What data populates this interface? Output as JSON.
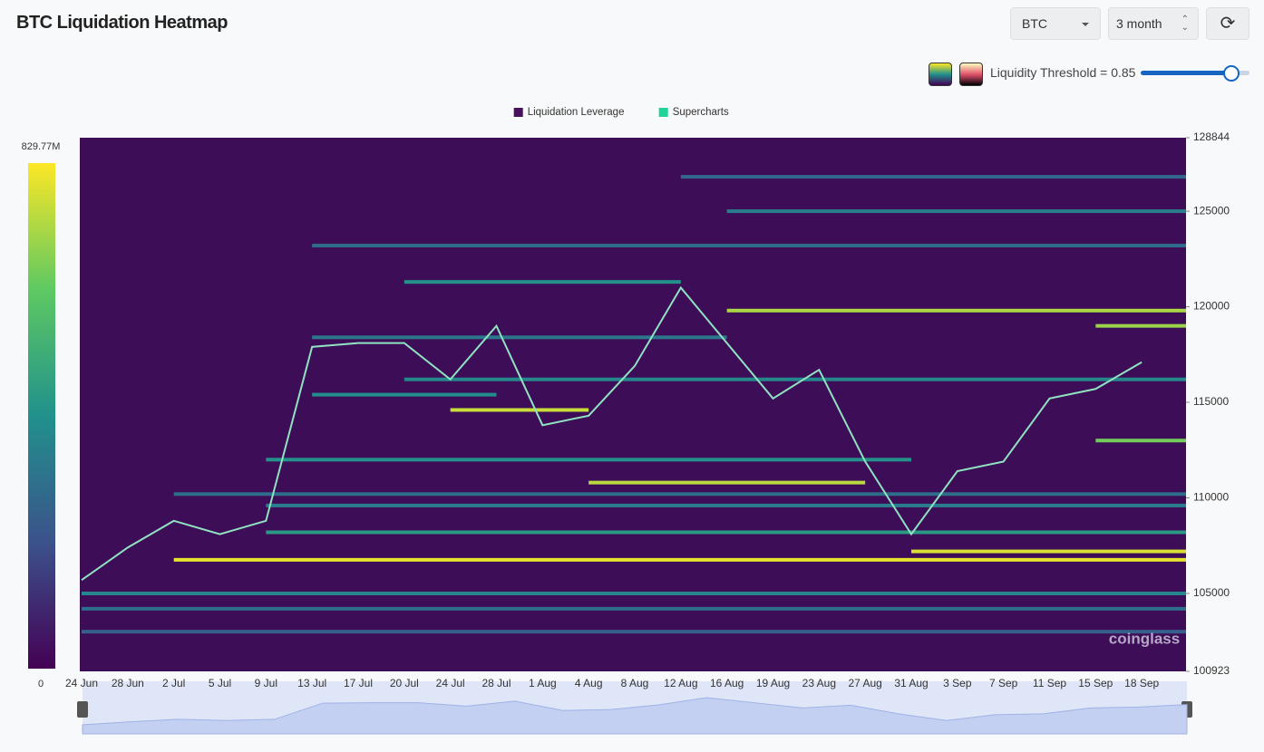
{
  "header": {
    "title": "BTC Liquidation Heatmap",
    "symbol": "BTC",
    "range": "3 month",
    "threshold": "Liquidity Threshold = 0.85"
  },
  "chart_data": {
    "type": "heatmap",
    "legend": [
      {
        "name": "Liquidation Leverage",
        "color": "#4a1060"
      },
      {
        "name": "Supercharts",
        "color": "#1ed49b"
      }
    ],
    "colorbar": [
      {
        "value": 829770000,
        "label": "829.77M"
      },
      0
    ],
    "categories": [
      "24 Jun",
      "28 Jun",
      "2 Jul",
      "5 Jul",
      "9 Jul",
      "13 Jul",
      "17 Jul",
      "20 Jul",
      "24 Jul",
      "28 Jul",
      "1 Aug",
      "4 Aug",
      "8 Aug",
      "12 Aug",
      "16 Aug",
      "19 Aug",
      "23 Aug",
      "27 Aug",
      "31 Aug",
      "3 Sep",
      "7 Sep",
      "11 Sep",
      "15 Sep",
      "18 Sep"
    ],
    "ylim": [
      100923,
      128844
    ],
    "yticks": [
      100923,
      105000,
      110000,
      115000,
      120000,
      125000,
      128844
    ],
    "price": {
      "color": "#8fe3c0",
      "values": [
        105700,
        107400,
        108800,
        108100,
        108800,
        117900,
        118100,
        118100,
        116200,
        119000,
        113800,
        114300,
        116900,
        121000,
        118100,
        115200,
        116700,
        111900,
        108100,
        111400,
        111900,
        115200,
        115700,
        117100
      ]
    },
    "levels": [
      {
        "price": 103000,
        "value": 250000000,
        "from": "24 Jun",
        "to": "18 Sep"
      },
      {
        "price": 104200,
        "value": 300000000,
        "from": "24 Jun",
        "to": "18 Sep"
      },
      {
        "price": 105000,
        "value": 380000000,
        "from": "24 Jun",
        "to": "18 Sep"
      },
      {
        "price": 108200,
        "value": 450000000,
        "from": "9 Jul",
        "to": "18 Sep"
      },
      {
        "price": 109600,
        "value": 350000000,
        "from": "9 Jul",
        "to": "18 Sep"
      },
      {
        "price": 110200,
        "value": 300000000,
        "from": "2 Jul",
        "to": "18 Sep"
      },
      {
        "price": 112000,
        "value": 420000000,
        "from": "9 Jul",
        "to": "27 Aug"
      },
      {
        "price": 115400,
        "value": 400000000,
        "from": "13 Jul",
        "to": "24 Jul"
      },
      {
        "price": 116200,
        "value": 380000000,
        "from": "20 Jul",
        "to": "18 Sep"
      },
      {
        "price": 118400,
        "value": 330000000,
        "from": "13 Jul",
        "to": "12 Aug"
      },
      {
        "price": 121300,
        "value": 420000000,
        "from": "20 Jul",
        "to": "8 Aug"
      },
      {
        "price": 123200,
        "value": 300000000,
        "from": "13 Jul",
        "to": "18 Sep"
      },
      {
        "price": 125000,
        "value": 350000000,
        "from": "16 Aug",
        "to": "18 Sep"
      },
      {
        "price": 126800,
        "value": 280000000,
        "from": "12 Aug",
        "to": "18 Sep"
      },
      {
        "price": 106760,
        "value": 800000000,
        "from": "2 Jul",
        "to": "18 Sep"
      },
      {
        "price": 107200,
        "value": 780000000,
        "from": "31 Aug",
        "to": "18 Sep"
      },
      {
        "price": 114600,
        "value": 760000000,
        "from": "24 Jul",
        "to": "1 Aug"
      },
      {
        "price": 110800,
        "value": 740000000,
        "from": "4 Aug",
        "to": "23 Aug"
      },
      {
        "price": 119800,
        "value": 720000000,
        "from": "16 Aug",
        "to": "18 Sep"
      },
      {
        "price": 119000,
        "value": 700000000,
        "from": "15 Sep",
        "to": "18 Sep"
      },
      {
        "price": 113000,
        "value": 650000000,
        "from": "15 Sep",
        "to": "18 Sep"
      }
    ],
    "watermark": "coinglass"
  }
}
